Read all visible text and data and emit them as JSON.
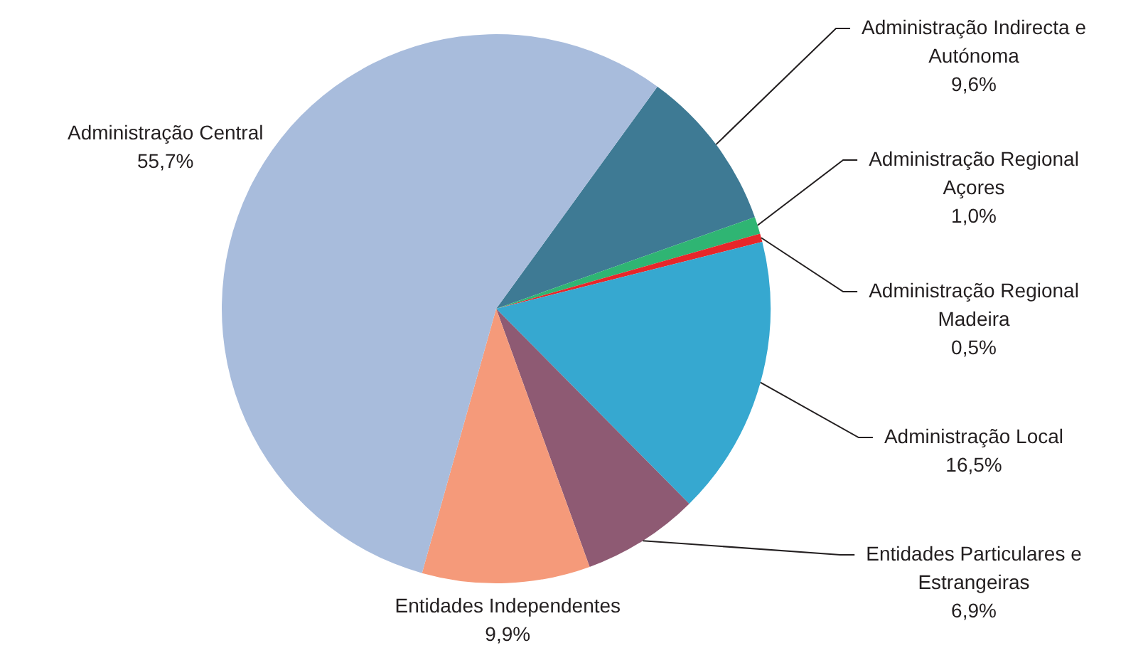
{
  "chart_data": {
    "type": "pie",
    "categories": [
      "Administração Indirecta e Autónoma",
      "Administração Regional Açores",
      "Administração Regional Madeira",
      "Administração Local",
      "Entidades Particulares e Estrangeiras",
      "Entidades Independentes",
      "Administração Central"
    ],
    "values": [
      9.6,
      1.0,
      0.5,
      16.5,
      6.9,
      9.9,
      55.7
    ],
    "value_labels": [
      "9,6%",
      "1,0%",
      "0,5%",
      "16,5%",
      "6,9%",
      "9,9%",
      "55,7%"
    ],
    "colors": [
      "#3e7a94",
      "#2fb573",
      "#e8262a",
      "#36a8d0",
      "#8e5a73",
      "#f59a7a",
      "#a8bcdc"
    ],
    "legend": false
  }
}
